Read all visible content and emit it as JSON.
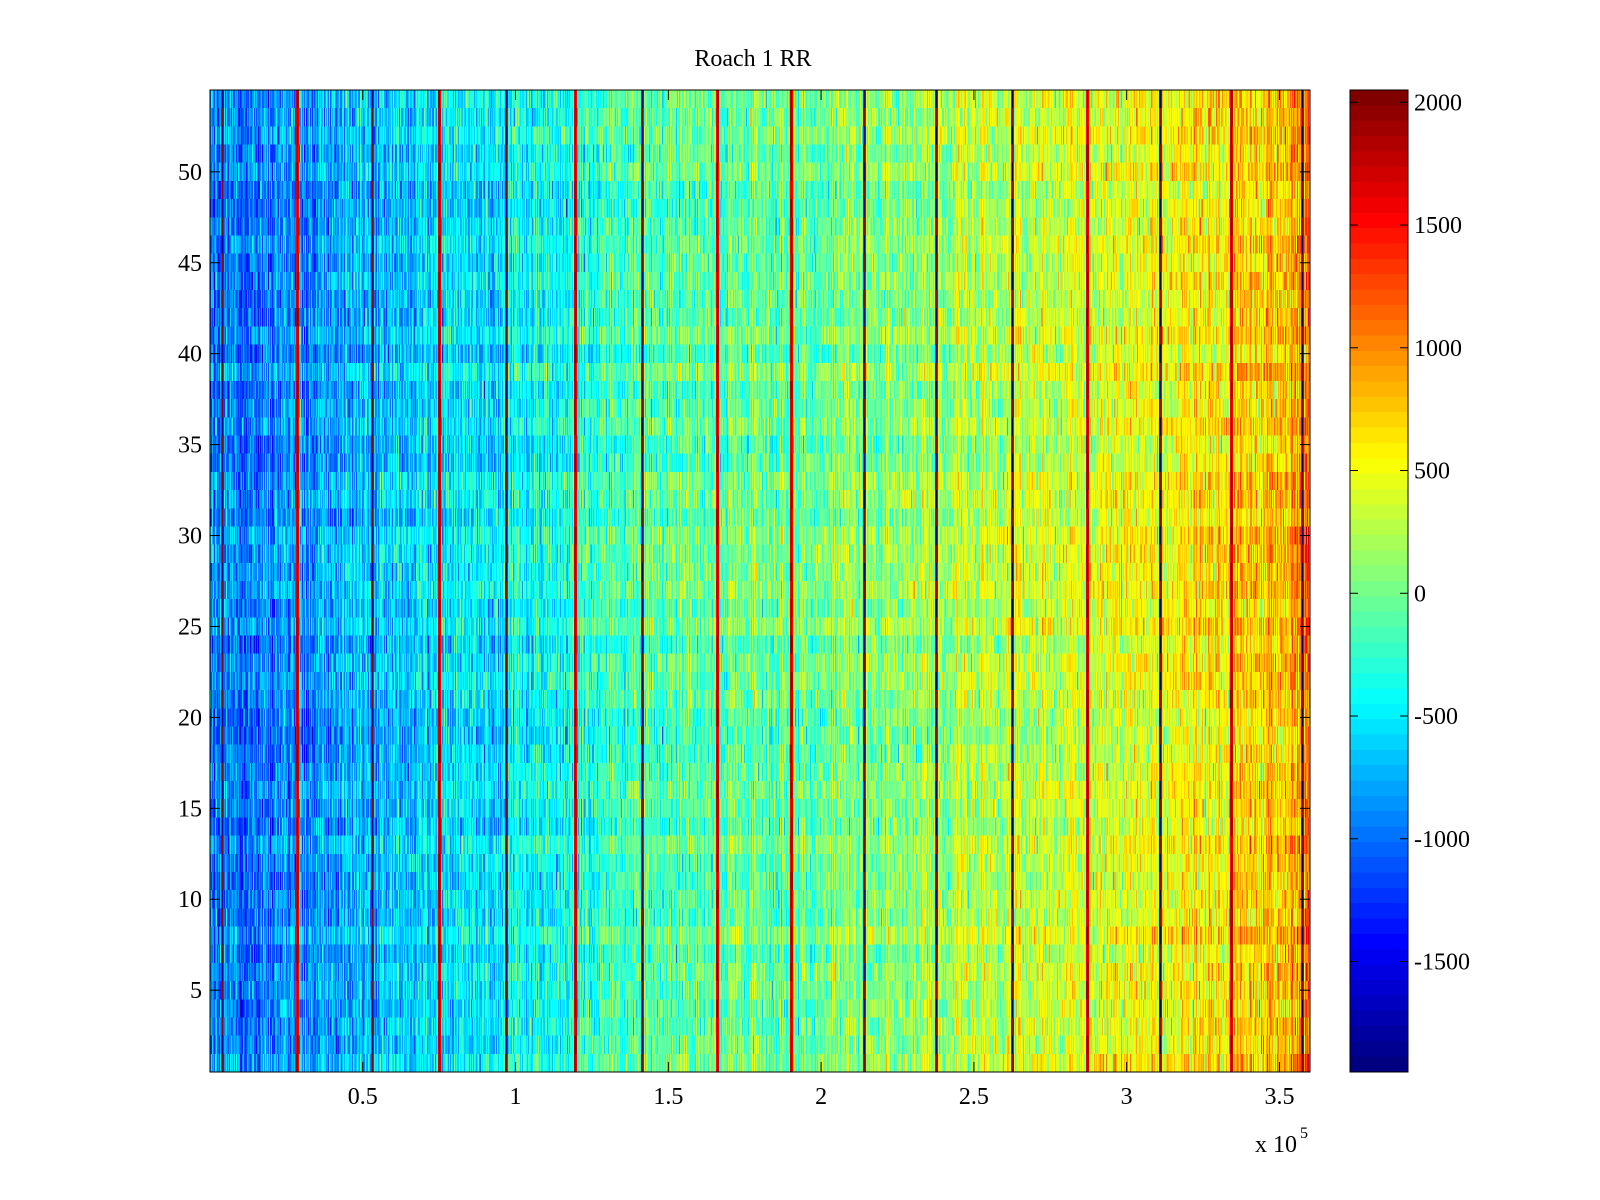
{
  "chart_data": {
    "type": "heatmap",
    "title": "Roach 1 RR",
    "xlabel": "",
    "ylabel": "",
    "x_multiplier_label": "x 10",
    "x_multiplier_exponent": "5",
    "xlim": [
      0,
      360000
    ],
    "ylim": [
      0.5,
      54.5
    ],
    "xticks": [
      50000,
      100000,
      150000,
      200000,
      250000,
      300000,
      350000
    ],
    "xtick_labels": [
      "0.5",
      "1",
      "1.5",
      "2",
      "2.5",
      "3",
      "3.5"
    ],
    "yticks": [
      5,
      10,
      15,
      20,
      25,
      30,
      35,
      40,
      45,
      50
    ],
    "ytick_labels": [
      "5",
      "10",
      "15",
      "20",
      "25",
      "30",
      "35",
      "40",
      "45",
      "50"
    ],
    "rows": 54,
    "colorbar": {
      "colormap": "jet",
      "clim": [
        -1950,
        2050
      ],
      "ticks": [
        2000,
        1500,
        1000,
        500,
        0,
        -500,
        -1000,
        -1500
      ],
      "tick_labels": [
        "2000",
        "1500",
        "1000",
        "500",
        "0",
        "-500",
        "-1000",
        "-1500"
      ]
    },
    "column_profile": {
      "x": [
        0,
        20000,
        50000,
        90000,
        120000,
        140000,
        180000,
        220000,
        260000,
        300000,
        340000,
        360000
      ],
      "mean_value": [
        -1000,
        -900,
        -700,
        -500,
        -300,
        -150,
        -50,
        100,
        300,
        450,
        700,
        1000
      ]
    },
    "red_stripes_x": [
      4000,
      28500,
      53000,
      75000,
      97000,
      119500,
      141500,
      166000,
      190000,
      214000,
      237500,
      262500,
      287000,
      311000,
      334000,
      357500
    ]
  }
}
